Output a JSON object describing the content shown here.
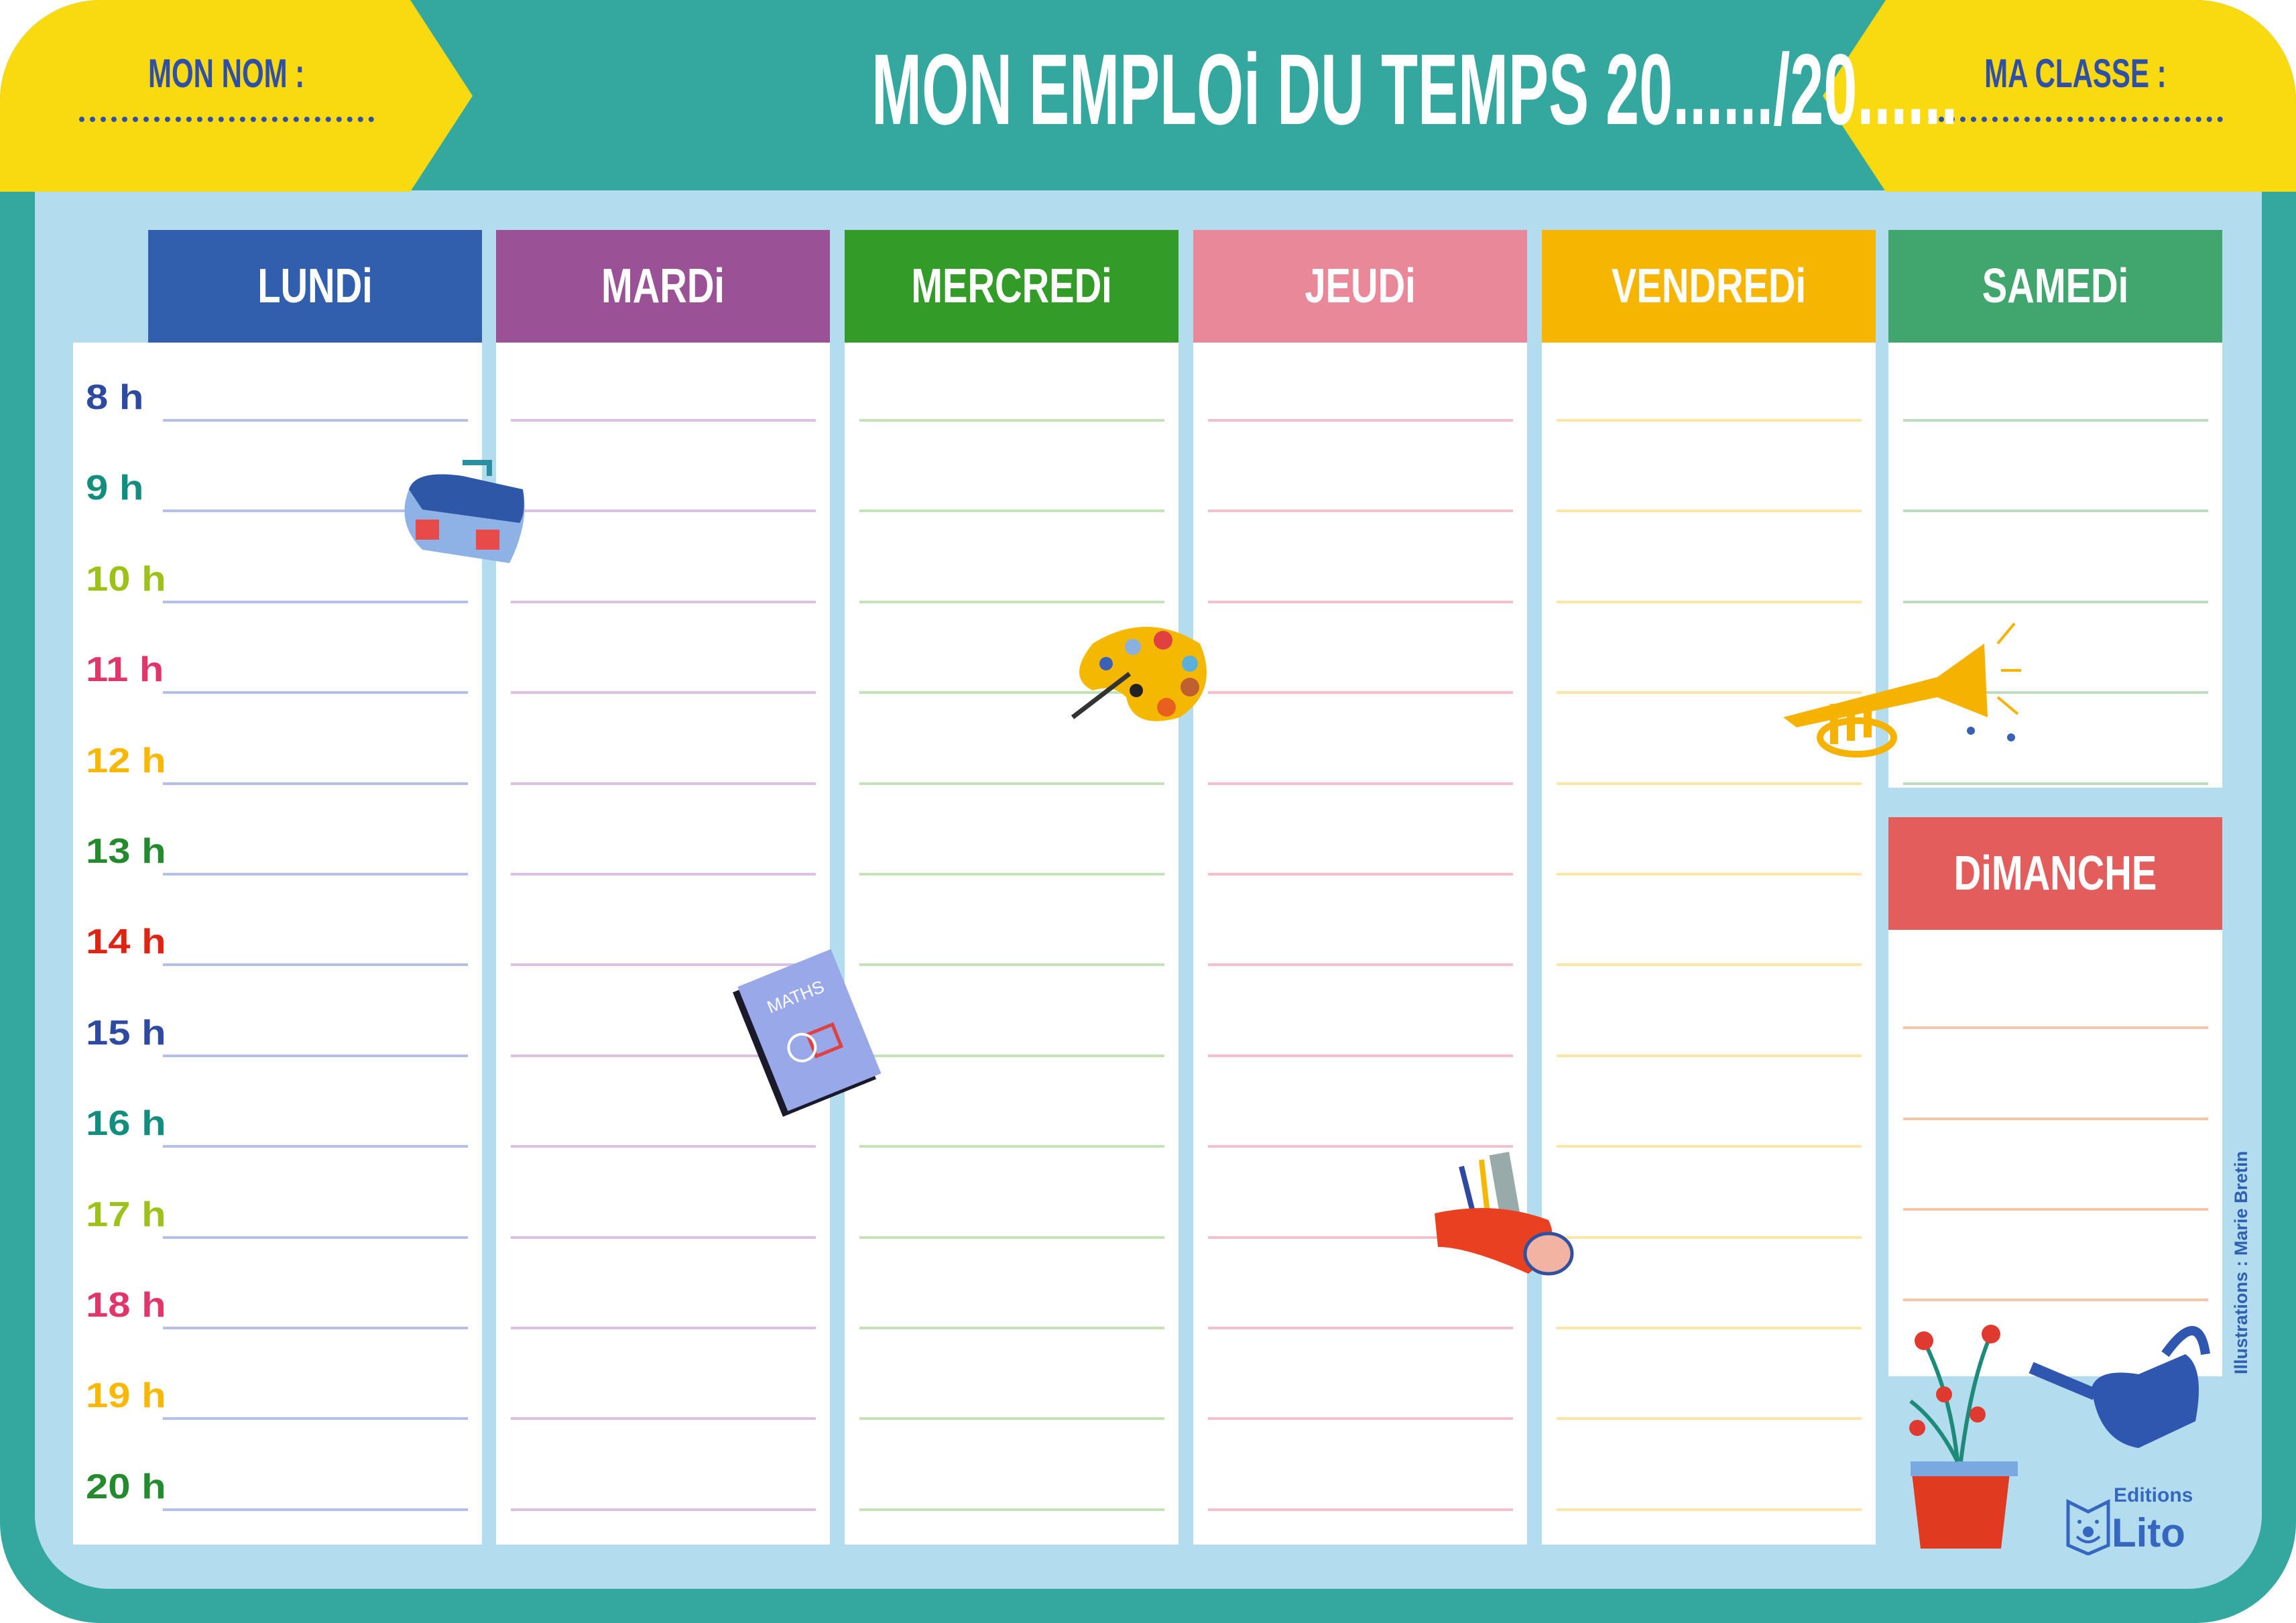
{
  "header": {
    "title": "MON EMPLOi DU TEMPS 20....../20......",
    "name_label": "MON NOM :",
    "class_label": "MA CLASSE :"
  },
  "days": [
    {
      "label": "LUNDi",
      "color": "#325fad",
      "line_color": "#b5bfe8"
    },
    {
      "label": "MARDi",
      "color": "#9b5196",
      "line_color": "#dcc0e2"
    },
    {
      "label": "MERCREDi",
      "color": "#339b28",
      "line_color": "#c3e2b6"
    },
    {
      "label": "JEUDi",
      "color": "#e88899",
      "line_color": "#f4c0cb"
    },
    {
      "label": "VENDREDi",
      "color": "#f6b500",
      "line_color": "#fbe6a6"
    },
    {
      "label": "SAMEDi",
      "color": "#41a56e",
      "line_color": "#bcdcbf"
    },
    {
      "label": "DiMANCHE",
      "color": "#e35d5c",
      "line_color": "#f6c4a6"
    }
  ],
  "hours": [
    {
      "label": "8 h",
      "color": "#2d4aa0"
    },
    {
      "label": "9 h",
      "color": "#138d7e"
    },
    {
      "label": "10 h",
      "color": "#9cc21a"
    },
    {
      "label": "11 h",
      "color": "#e0366a"
    },
    {
      "label": "12 h",
      "color": "#f9b700"
    },
    {
      "label": "13 h",
      "color": "#238a2e"
    },
    {
      "label": "14 h",
      "color": "#e02414"
    },
    {
      "label": "15 h",
      "color": "#2d4aa0"
    },
    {
      "label": "16 h",
      "color": "#138d7e"
    },
    {
      "label": "17 h",
      "color": "#9cc21a"
    },
    {
      "label": "18 h",
      "color": "#e0366a"
    },
    {
      "label": "19 h",
      "color": "#f9b700"
    },
    {
      "label": "20 h",
      "color": "#238a2e"
    }
  ],
  "credit": "Illustrations : Marie Bretin",
  "logo": {
    "line1": "Editions",
    "line2": "Lito"
  },
  "illustrations": {
    "book_label": "MATHS"
  }
}
